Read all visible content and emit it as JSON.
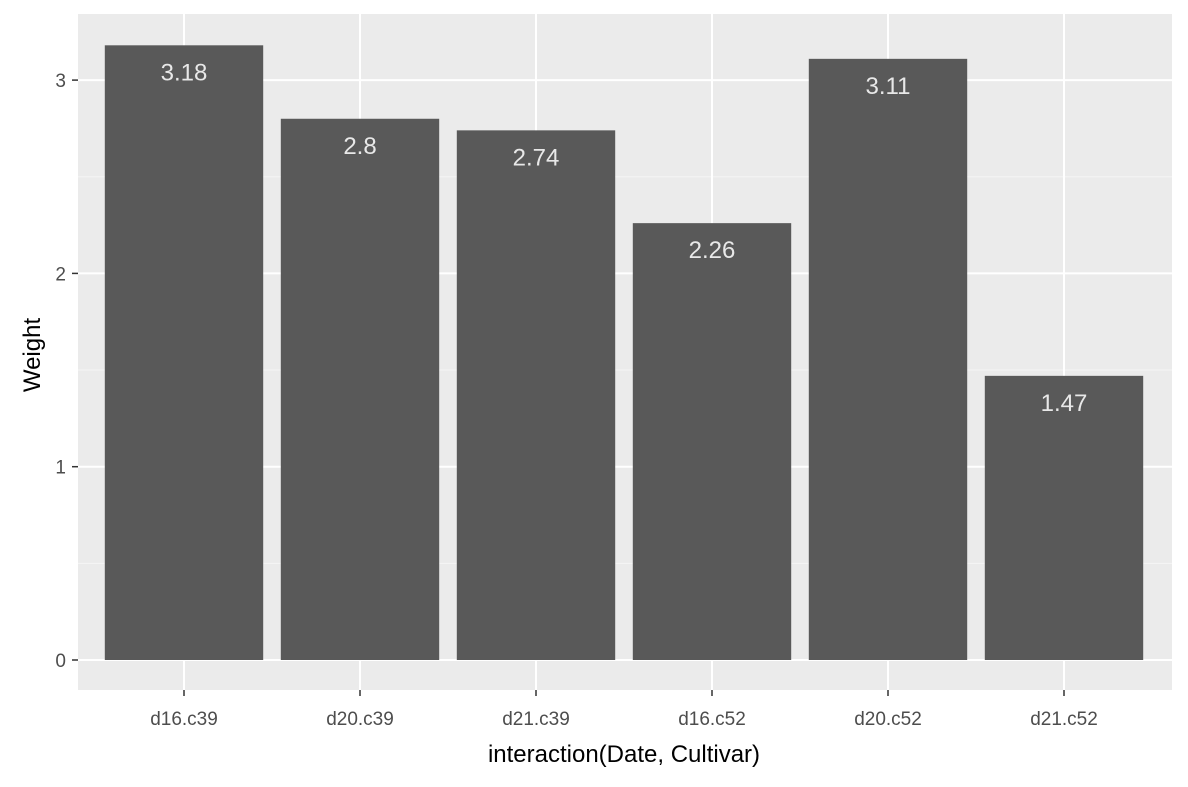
{
  "chart_data": {
    "type": "bar",
    "title": "",
    "xlabel": "interaction(Date, Cultivar)",
    "ylabel": "Weight",
    "categories": [
      "d16.c39",
      "d20.c39",
      "d21.c39",
      "d16.c52",
      "d20.c52",
      "d21.c52"
    ],
    "values": [
      3.18,
      2.8,
      2.74,
      2.26,
      3.11,
      1.47
    ],
    "data_labels": [
      "3.18",
      "2.8",
      "2.74",
      "2.26",
      "3.11",
      "1.47"
    ],
    "y_ticks": [
      0,
      1,
      2,
      3
    ],
    "y_tick_labels": [
      "0",
      "1",
      "2",
      "3"
    ],
    "ylim": [
      -0.16,
      3.34
    ],
    "grid": true,
    "legend": "none",
    "colors": {
      "panel_background": "#ebebeb",
      "grid_major": "#ffffff",
      "grid_minor": "#f5f5f5",
      "bar_fill": "#595959",
      "data_label": "#e8e8e8",
      "tick_label": "#4d4d4d",
      "axis_title": "#000000"
    }
  }
}
